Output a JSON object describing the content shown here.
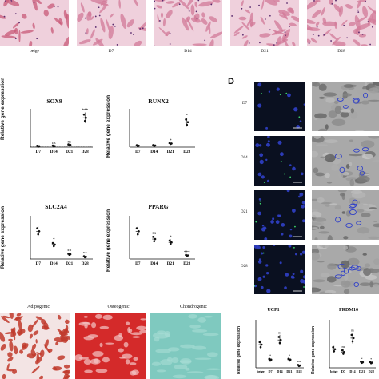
{
  "panel_d_letter": "D",
  "top_row_labels": [
    "beige",
    "D7",
    "D14",
    "D21",
    "D28"
  ],
  "bottom_row_labels": [
    "Adipogenic",
    "Osteogenic",
    "Chondrogenic"
  ],
  "panel_d_rows": [
    "D7",
    "D14",
    "D21",
    "D28"
  ],
  "ylabel": "Relative gene expression",
  "colors": {
    "stain_pink": "#d98aa8",
    "stain_red": "#d42a2a",
    "stain_teal": "#7fc9bf",
    "nuclei": "#3040c8",
    "fluor_bg": "#0a1020"
  },
  "chart_data": [
    {
      "type": "scatter",
      "title": "SOX9",
      "categories": [
        "D7",
        "D14",
        "D21",
        "D28"
      ],
      "values": [
        1.0,
        1.2,
        2.5,
        32
      ],
      "significance": [
        "",
        "ns",
        "ns",
        "***"
      ],
      "ylabel": "Relative gene expression",
      "ylim": [
        0,
        40
      ],
      "reference_line": 1
    },
    {
      "type": "scatter",
      "title": "RUNX2",
      "categories": [
        "D7",
        "D14",
        "D21",
        "D28"
      ],
      "values": [
        1.0,
        1.1,
        2.5,
        17
      ],
      "significance": [
        "",
        "",
        "*",
        "*"
      ],
      "ylabel": "Relative gene expression",
      "ylim": [
        0,
        25
      ]
    },
    {
      "type": "scatter",
      "title": "SLC2A4",
      "categories": [
        "D7",
        "D14",
        "D21",
        "D28"
      ],
      "values": [
        1.0,
        0.52,
        0.17,
        0.08
      ],
      "significance": [
        "",
        "*",
        "**",
        "**"
      ],
      "ylabel": "Relative gene expression",
      "ylim": [
        0,
        1.5
      ]
    },
    {
      "type": "scatter",
      "title": "PPARG",
      "categories": [
        "D7",
        "D14",
        "D21",
        "D28"
      ],
      "values": [
        1.0,
        0.72,
        0.6,
        0.13
      ],
      "significance": [
        "",
        "ns",
        "*",
        "***"
      ],
      "ylabel": "Relative gene expression",
      "ylim": [
        0,
        1.5
      ]
    },
    {
      "type": "scatter",
      "title": "UCP1",
      "categories": [
        "beige",
        "D7",
        "D14",
        "D21",
        "D28"
      ],
      "values": [
        1.0,
        0.35,
        1.2,
        0.35,
        0.1
      ],
      "significance": [
        "",
        "*",
        "ns",
        "*",
        "**"
      ],
      "ylabel": "Relative gene expression",
      "ylim": [
        0,
        2
      ]
    },
    {
      "type": "scatter",
      "title": "PRDM16",
      "categories": [
        "beige",
        "D7",
        "D14",
        "D21",
        "D28"
      ],
      "values": [
        1.0,
        0.85,
        1.6,
        0.3,
        0.28
      ],
      "significance": [
        "",
        "ns",
        "ns",
        "*",
        "*"
      ],
      "ylabel": "Relative gene expression",
      "ylim": [
        0,
        2.5
      ]
    }
  ]
}
